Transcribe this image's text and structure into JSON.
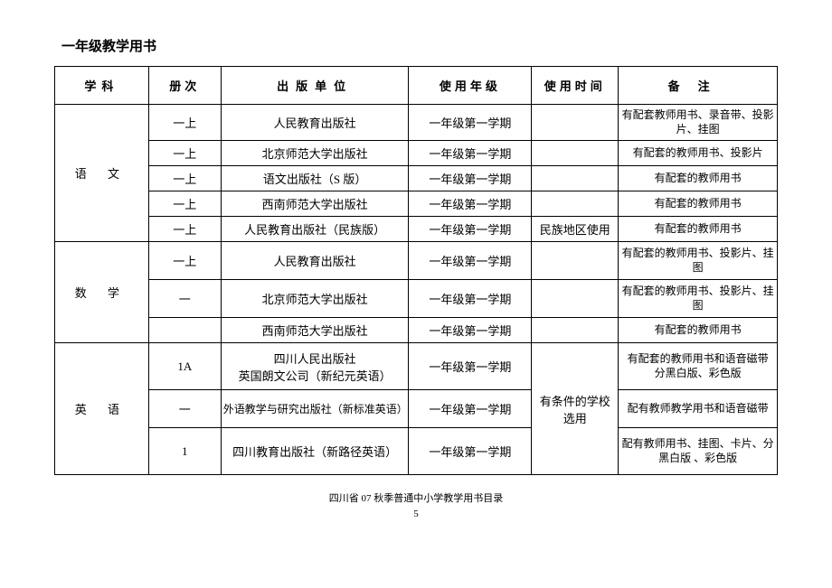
{
  "title": "一年级教学用书",
  "headers": {
    "subject": "学科",
    "volume": "册次",
    "publisher": "出版单位",
    "grade": "使用年级",
    "time": "使用时间",
    "remark": "备注"
  },
  "footer": {
    "line1": "四川省 07 秋季普通中小学教学用书目录",
    "line2": "5"
  },
  "subj": {
    "yuwen": "语 文",
    "shuxue": "数 学",
    "yingyu": "英 语"
  },
  "vol": {
    "r1": "一上",
    "r2": "一上",
    "r3": "一上",
    "r4": "一上",
    "r5": "一上",
    "r6": "一上",
    "r7": "一",
    "r8": "",
    "r9": "1A",
    "r10": "一",
    "r11": "1"
  },
  "pub": {
    "r1": "人民教育出版社",
    "r2": "北京师范大学出版社",
    "r3": "语文出版社（S 版）",
    "r4": "西南师范大学出版社",
    "r5": "人民教育出版社（民族版）",
    "r6": "人民教育出版社",
    "r7": "北京师范大学出版社",
    "r8": "西南师范大学出版社",
    "r9a": "四川人民出版社",
    "r9b": "英国朗文公司（新纪元英语）",
    "r10": "外语教学与研究出版社（新标准英语）",
    "r11": "四川教育出版社（新路径英语）"
  },
  "grd": {
    "r1": "一年级第一学期",
    "r2": "一年级第一学期",
    "r3": "一年级第一学期",
    "r4": "一年级第一学期",
    "r5": "一年级第一学期",
    "r6": "一年级第一学期",
    "r7": "一年级第一学期",
    "r8": "一年级第一学期",
    "r9": "一年级第一学期",
    "r10": "一年级第一学期",
    "r11": "一年级第一学期"
  },
  "tim": {
    "r5": "民族地区使用",
    "eng": "有条件的学校选用"
  },
  "rem": {
    "r1": "有配套教师用书、录音带、投影片、挂图",
    "r2": "有配套的教师用书、投影片",
    "r3": "有配套的教师用书",
    "r4": "有配套的教师用书",
    "r5": "有配套的教师用书",
    "r6": "有配套的教师用书、投影片、挂图",
    "r7": "有配套的教师用书、投影片、挂图",
    "r8": "有配套的教师用书",
    "r9a": "有配套的教师用书和语音磁带",
    "r9b": "分黑白版、彩色版",
    "r10": "配有教师教学用书和语音磁带",
    "r11": "配有教师用书、挂图、卡片、分黑白版 、彩色版"
  }
}
